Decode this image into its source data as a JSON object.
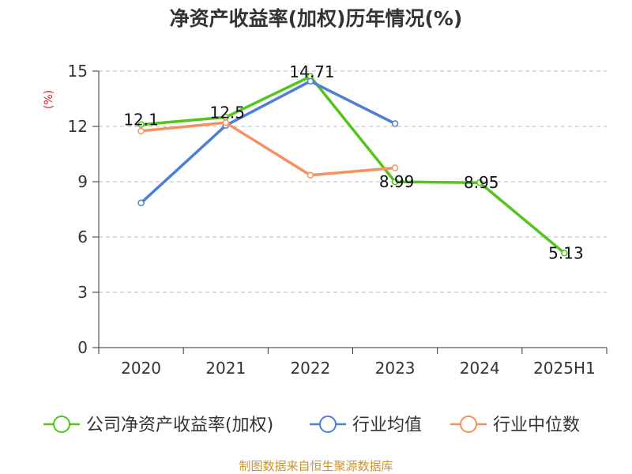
{
  "chart_data": {
    "type": "line",
    "title": "净资产收益率(加权)历年情况(%)",
    "ylabel": "(%)",
    "categories": [
      "2020",
      "2021",
      "2022",
      "2023",
      "2024",
      "2025H1"
    ],
    "ylim": [
      0,
      15
    ],
    "yticks": [
      0,
      3,
      6,
      9,
      12,
      15
    ],
    "grid": true,
    "legend_position": "bottom",
    "series": [
      {
        "name": "公司净资产收益率(加权)",
        "color": "#52c41a",
        "values": [
          12.1,
          12.5,
          14.71,
          8.99,
          8.95,
          5.13
        ],
        "labels": [
          "12.1",
          "12.5",
          "14.71",
          "8.99",
          "8.95",
          "5.13"
        ]
      },
      {
        "name": "行业均值",
        "color": "#4e7fd8",
        "values": [
          7.85,
          12.05,
          14.45,
          12.15,
          null,
          null
        ]
      },
      {
        "name": "行业中位数",
        "color": "#f5915f",
        "values": [
          11.75,
          12.2,
          9.35,
          9.75,
          null,
          null
        ]
      }
    ]
  },
  "ylabel_color": "#e02020",
  "source": {
    "text": "制图数据来自恒生聚源数据库",
    "color": "#c8962d"
  }
}
